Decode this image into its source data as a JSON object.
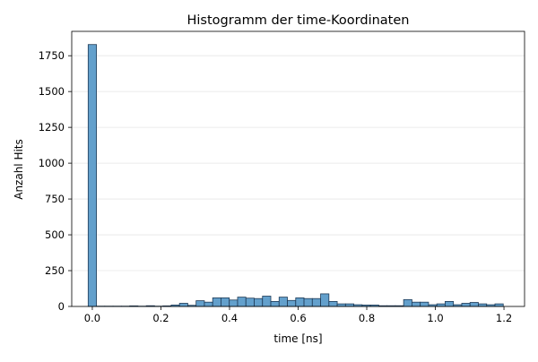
{
  "chart_data": {
    "type": "bar",
    "title": "Histogramm der time-Koordinaten",
    "xlabel": "time [ns]",
    "ylabel": "Anzahl Hits",
    "xlim": [
      -0.06,
      1.26
    ],
    "ylim": [
      0,
      1920
    ],
    "xticks": [
      0.0,
      0.2,
      0.4,
      0.6,
      0.8,
      1.0,
      1.2
    ],
    "xtick_labels": [
      "0.0",
      "0.2",
      "0.4",
      "0.6",
      "0.8",
      "1.0",
      "1.2"
    ],
    "yticks": [
      0,
      250,
      500,
      750,
      1000,
      1250,
      1500,
      1750
    ],
    "ytick_labels": [
      "0",
      "250",
      "500",
      "750",
      "1000",
      "1250",
      "1500",
      "1750"
    ],
    "grid": "y",
    "bin_width": 0.0242,
    "bin_starts": [
      -0.0121,
      0.0121,
      0.0363,
      0.0605,
      0.0847,
      0.1089,
      0.1331,
      0.1573,
      0.1815,
      0.2057,
      0.2299,
      0.2541,
      0.2783,
      0.3025,
      0.3267,
      0.3509,
      0.3751,
      0.3993,
      0.4235,
      0.4477,
      0.4719,
      0.4961,
      0.5203,
      0.5445,
      0.5687,
      0.5929,
      0.6171,
      0.6413,
      0.6655,
      0.6897,
      0.7139,
      0.7381,
      0.7623,
      0.7865,
      0.8107,
      0.8349,
      0.8591,
      0.8833,
      0.9075,
      0.9317,
      0.9559,
      0.9801,
      1.0043,
      1.0285,
      1.0527,
      1.0769,
      1.1011,
      1.1253,
      1.1495,
      1.1737
    ],
    "values": [
      1828,
      2,
      2,
      2,
      2,
      4,
      2,
      5,
      2,
      4,
      10,
      22,
      8,
      40,
      30,
      60,
      60,
      45,
      65,
      58,
      55,
      72,
      35,
      65,
      42,
      60,
      55,
      55,
      88,
      35,
      18,
      18,
      12,
      10,
      10,
      5,
      5,
      5,
      48,
      30,
      30,
      12,
      18,
      35,
      12,
      22,
      28,
      18,
      12,
      18
    ],
    "bar_color": "#5b9bc9",
    "edge_color": "#1f3b57"
  }
}
